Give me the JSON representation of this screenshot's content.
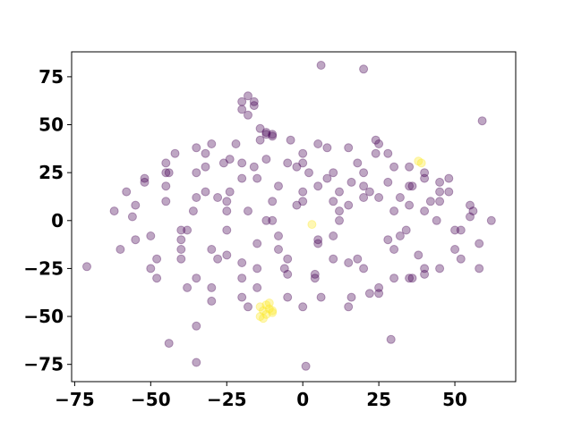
{
  "chart_data": {
    "type": "scatter",
    "title": "",
    "xlabel": "",
    "ylabel": "",
    "xlim": [
      -76,
      70
    ],
    "ylim": [
      -84,
      88
    ],
    "xticks": [
      -75,
      -50,
      -25,
      0,
      25,
      50
    ],
    "yticks": [
      75,
      50,
      25,
      0,
      -25,
      -50,
      -75
    ],
    "xtick_labels": [
      "−75",
      "−50",
      "−25",
      "0",
      "25",
      "50"
    ],
    "ytick_labels": [
      "75",
      "50",
      "25",
      "0",
      "−25",
      "−50",
      "−75"
    ],
    "grid": false,
    "legend": false,
    "marker_alpha": 0.35,
    "colors": {
      "class_0": "#440154",
      "class_1": "#fde725",
      "axes": "#000000",
      "background": "#ffffff"
    },
    "series": [
      {
        "class": 0,
        "color": "#440154",
        "x": [
          -62,
          -58,
          -55,
          -52,
          -48,
          -45,
          -42,
          -38,
          -35,
          -32,
          -28,
          -25,
          -22,
          -18,
          -15,
          -12,
          -8,
          -5,
          -2,
          2,
          5,
          8,
          12,
          15,
          18,
          22,
          25,
          28,
          32,
          35,
          38,
          42,
          45,
          48,
          52,
          55,
          58,
          62,
          -60,
          -56,
          -52,
          -48,
          -44,
          -40,
          -36,
          -32,
          -28,
          -24,
          -20,
          -16,
          -12,
          -8,
          -4,
          0,
          4,
          8,
          12,
          16,
          20,
          24,
          28,
          32,
          36,
          40,
          44,
          48,
          52,
          56,
          -55,
          -50,
          -45,
          -40,
          -35,
          -30,
          -25,
          -20,
          -15,
          -10,
          -5,
          0,
          5,
          10,
          15,
          20,
          25,
          30,
          35,
          40,
          45,
          50,
          55,
          -50,
          -45,
          -40,
          -35,
          -30,
          -25,
          -20,
          -15,
          -10,
          -5,
          0,
          5,
          10,
          15,
          20,
          25,
          30,
          35,
          40,
          45,
          50,
          -45,
          -40,
          -35,
          -30,
          -25,
          -20,
          -15,
          -10,
          -5,
          0,
          5,
          10,
          15,
          20,
          25,
          30,
          35,
          40,
          45,
          -38,
          -32,
          -26,
          -20,
          -14,
          -8,
          -2,
          4,
          10,
          16,
          22,
          28,
          34,
          40,
          -30,
          -24,
          -18,
          -12,
          -6,
          0,
          6,
          12,
          18,
          24,
          30,
          36,
          -20,
          -18,
          -16,
          -20,
          -18,
          -16,
          -14,
          -12,
          -10,
          -71,
          -44,
          -35,
          -35,
          1,
          6,
          20,
          29,
          59,
          58
        ],
        "y": [
          5,
          15,
          -10,
          22,
          -20,
          10,
          35,
          -5,
          -30,
          28,
          12,
          -18,
          40,
          5,
          -25,
          32,
          18,
          -40,
          8,
          25,
          -12,
          38,
          0,
          -22,
          30,
          15,
          -35,
          20,
          -8,
          28,
          -18,
          10,
          -25,
          15,
          -5,
          8,
          -12,
          0,
          -15,
          2,
          20,
          -30,
          25,
          -10,
          5,
          35,
          -20,
          15,
          -40,
          28,
          0,
          -15,
          42,
          10,
          -28,
          22,
          5,
          -40,
          18,
          35,
          -10,
          12,
          -30,
          25,
          0,
          22,
          -20,
          5,
          8,
          -25,
          30,
          -15,
          12,
          40,
          -5,
          22,
          -35,
          10,
          30,
          -45,
          18,
          -8,
          38,
          -25,
          12,
          28,
          -30,
          5,
          20,
          -15,
          2,
          -8,
          18,
          -20,
          25,
          -35,
          5,
          30,
          -12,
          45,
          -28,
          15,
          40,
          -20,
          8,
          25,
          -38,
          5,
          18,
          -25,
          10,
          -5,
          25,
          -5,
          38,
          -15,
          10,
          -30,
          22,
          0,
          -20,
          35,
          -10,
          25,
          -45,
          12,
          40,
          -15,
          8,
          -28,
          15,
          -35,
          15,
          30,
          -22,
          42,
          -8,
          28,
          -30,
          10,
          20,
          -38,
          35,
          -5,
          22,
          -42,
          32,
          -45,
          45,
          -25,
          30,
          -40,
          15,
          -20,
          42,
          -30,
          18,
          62,
          65,
          60,
          58,
          55,
          62,
          48,
          46,
          44,
          -24,
          -64,
          -55,
          -74,
          -76,
          81,
          79,
          -62,
          52,
          -25
        ]
      },
      {
        "class": 1,
        "color": "#fde725",
        "x": [
          -14,
          -13,
          -12,
          -11,
          -10,
          -14,
          -12,
          -10,
          -13,
          -11,
          38,
          39,
          3
        ],
        "y": [
          -45,
          -47,
          -49,
          -46,
          -48,
          -50,
          -44,
          -47,
          -51,
          -43,
          31,
          30,
          -2
        ]
      }
    ]
  }
}
